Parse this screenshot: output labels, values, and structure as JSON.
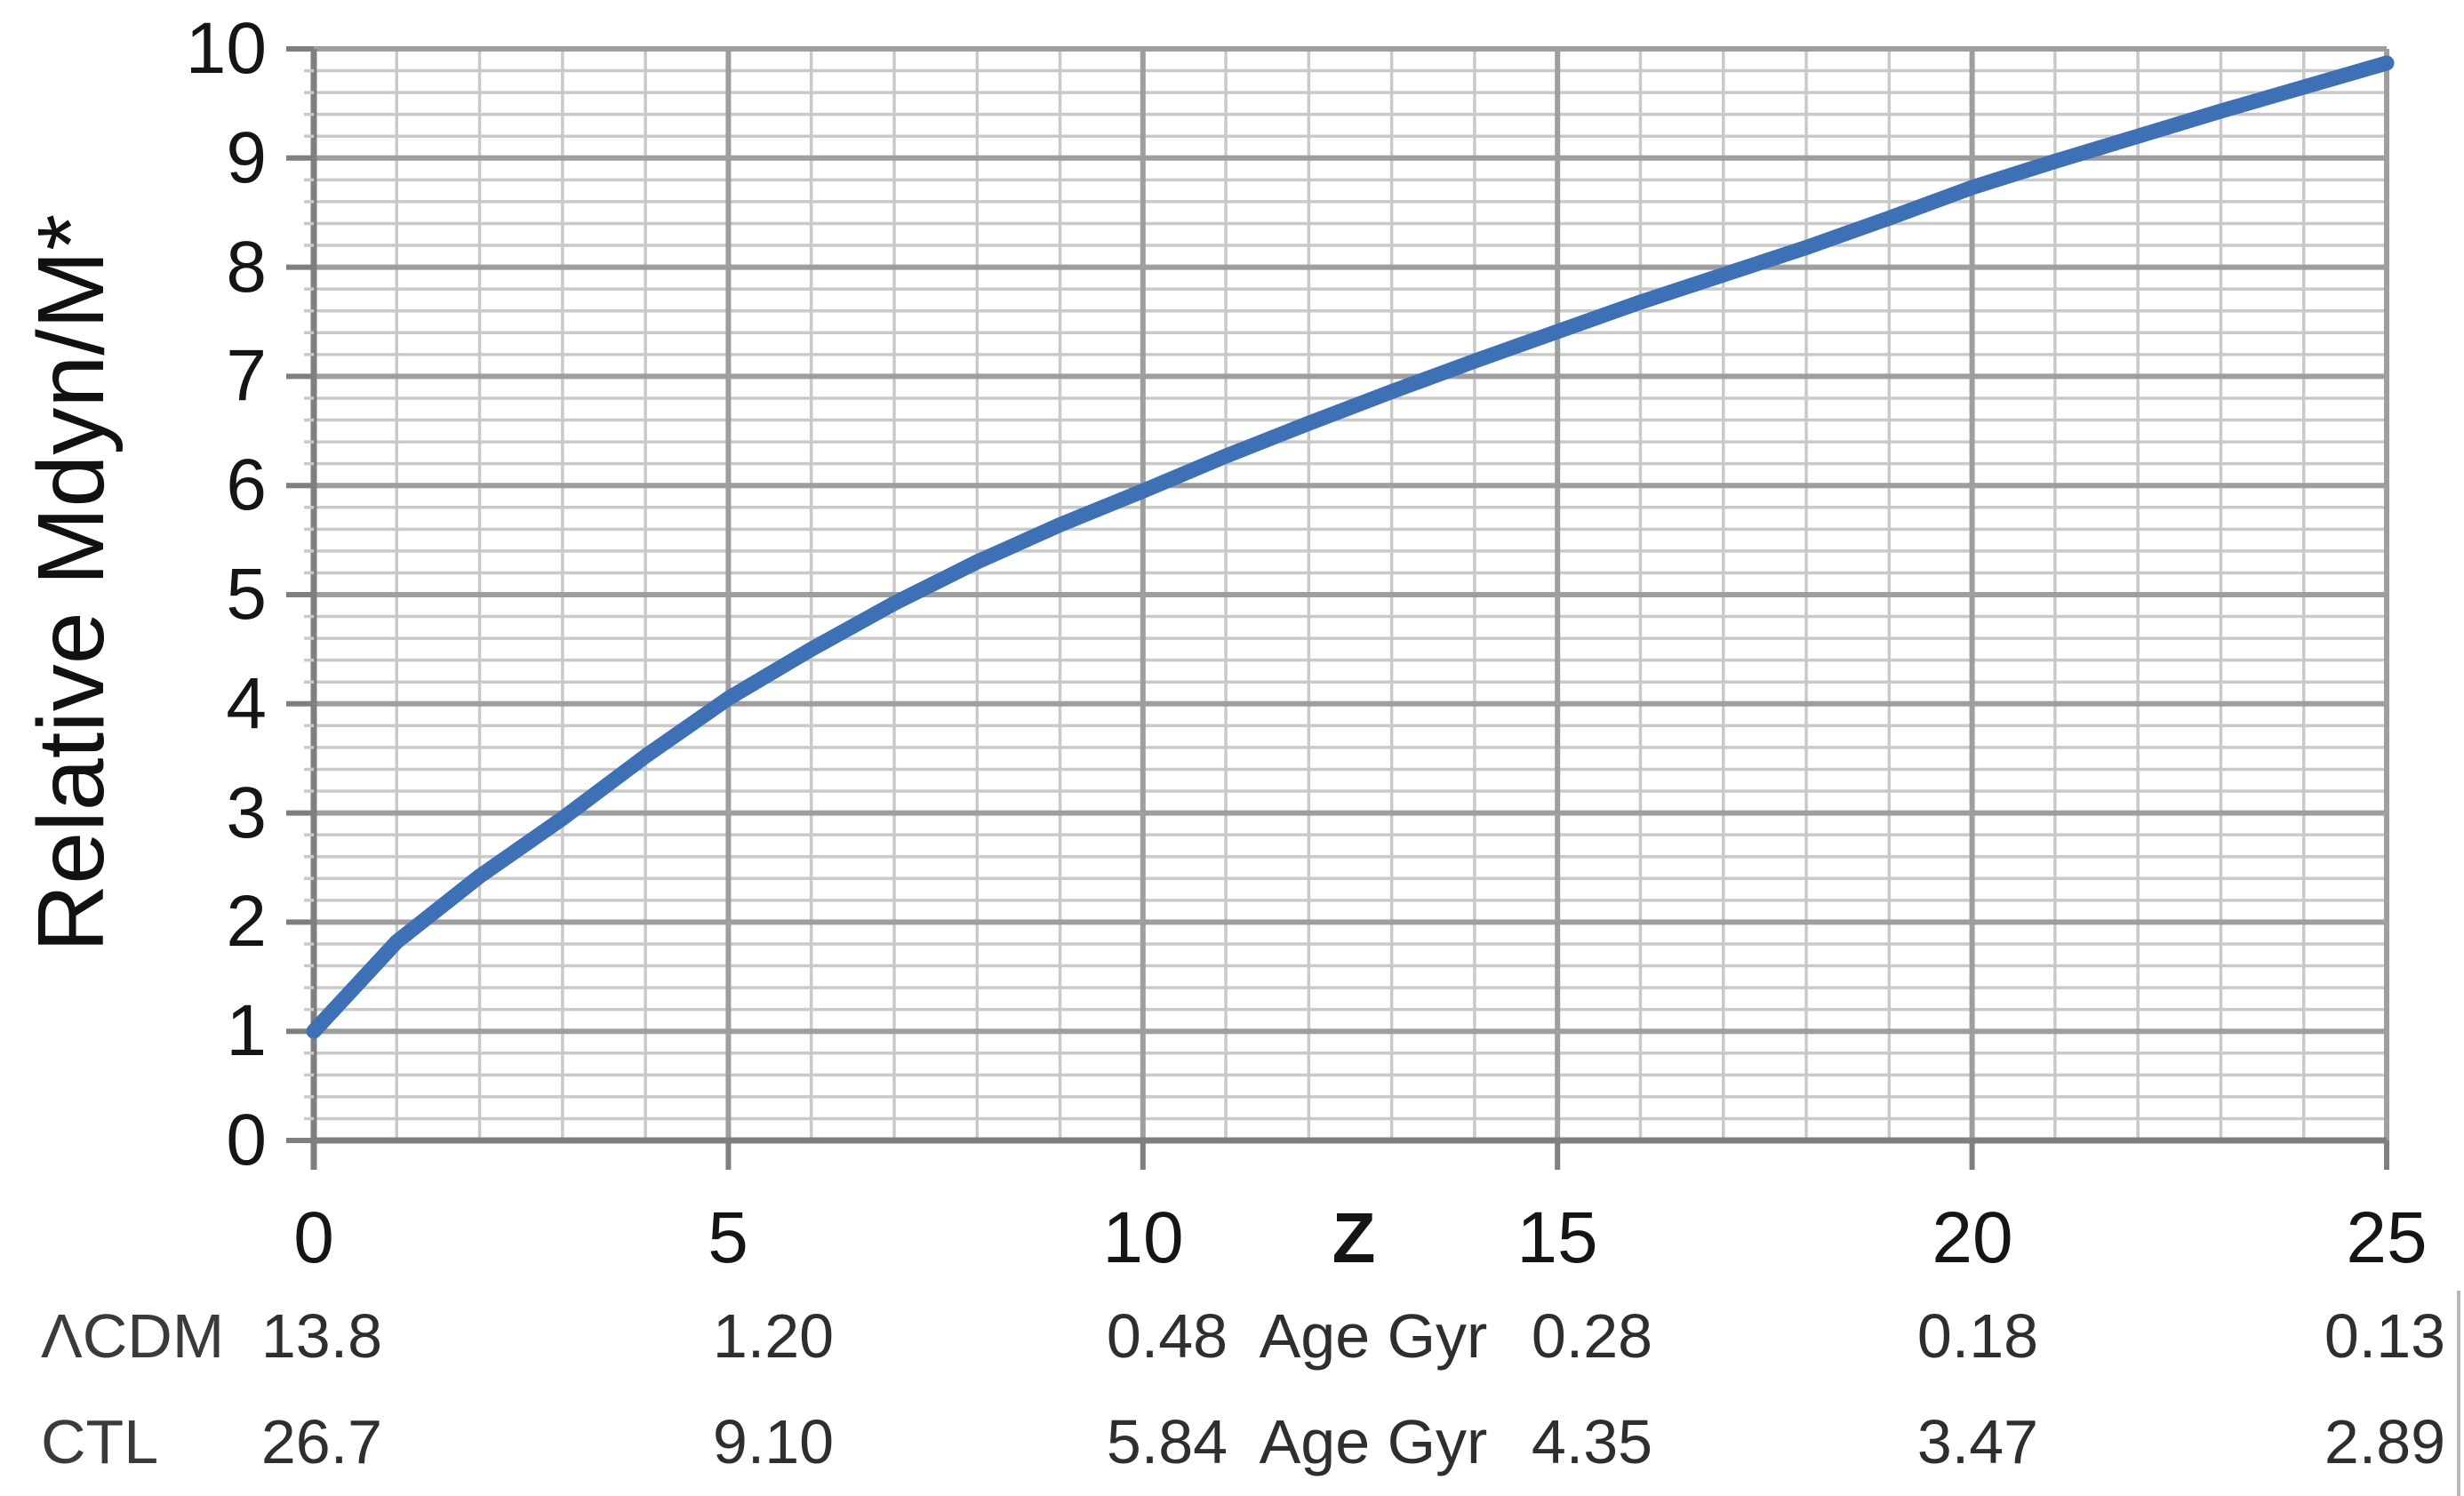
{
  "chart_data": {
    "type": "line",
    "title": "",
    "ylabel": "Relative Mdyn/M*",
    "xlabel": "Z",
    "xlim": [
      0,
      25
    ],
    "ylim": [
      0,
      10
    ],
    "grid": "both",
    "x_minor_step": 1,
    "y_minor_step": 0.2,
    "x_major_ticks": [
      0,
      5,
      10,
      15,
      20,
      25
    ],
    "x_tick_labels": [
      "0",
      "5",
      "10",
      "15",
      "20",
      "25"
    ],
    "y_major_ticks": [
      0,
      1,
      2,
      3,
      4,
      5,
      6,
      7,
      8,
      9,
      10
    ],
    "y_tick_labels": [
      "0",
      "1",
      "2",
      "3",
      "4",
      "5",
      "6",
      "7",
      "8",
      "9",
      "10"
    ],
    "legend_position": "none",
    "series": [
      {
        "name": "Relative Mdyn/M*",
        "color": "#3e70b5",
        "x": [
          0,
          1,
          2,
          3,
          4,
          5,
          6,
          7,
          8,
          9,
          10,
          11,
          12,
          13,
          14,
          15,
          16,
          17,
          18,
          19,
          20,
          21,
          22,
          23,
          24,
          25
        ],
        "y": [
          1.0,
          1.82,
          2.42,
          2.95,
          3.52,
          4.05,
          4.5,
          4.92,
          5.3,
          5.64,
          5.95,
          6.27,
          6.57,
          6.86,
          7.14,
          7.41,
          7.68,
          7.93,
          8.18,
          8.45,
          8.73,
          8.97,
          9.2,
          9.43,
          9.65,
          9.87
        ]
      }
    ],
    "annotation_rows": [
      {
        "label": "ΛCDM",
        "unit": "Age Gyr",
        "values": [
          "13.8",
          "1.20",
          "0.48",
          "0.28",
          "0.18",
          "0.13"
        ]
      },
      {
        "label": "CTL",
        "unit": "Age Gyr",
        "values": [
          "26.7",
          "9.10",
          "5.84",
          "4.35",
          "3.47",
          "2.89"
        ]
      }
    ]
  },
  "colors": {
    "curve_blue": "#3e70b5",
    "grid_minor": "#c9c9c9",
    "grid_major": "#9e9e9e",
    "axis": "#7f7f7f",
    "edge_artifact": "#b8b8b8",
    "text": "#151515"
  }
}
